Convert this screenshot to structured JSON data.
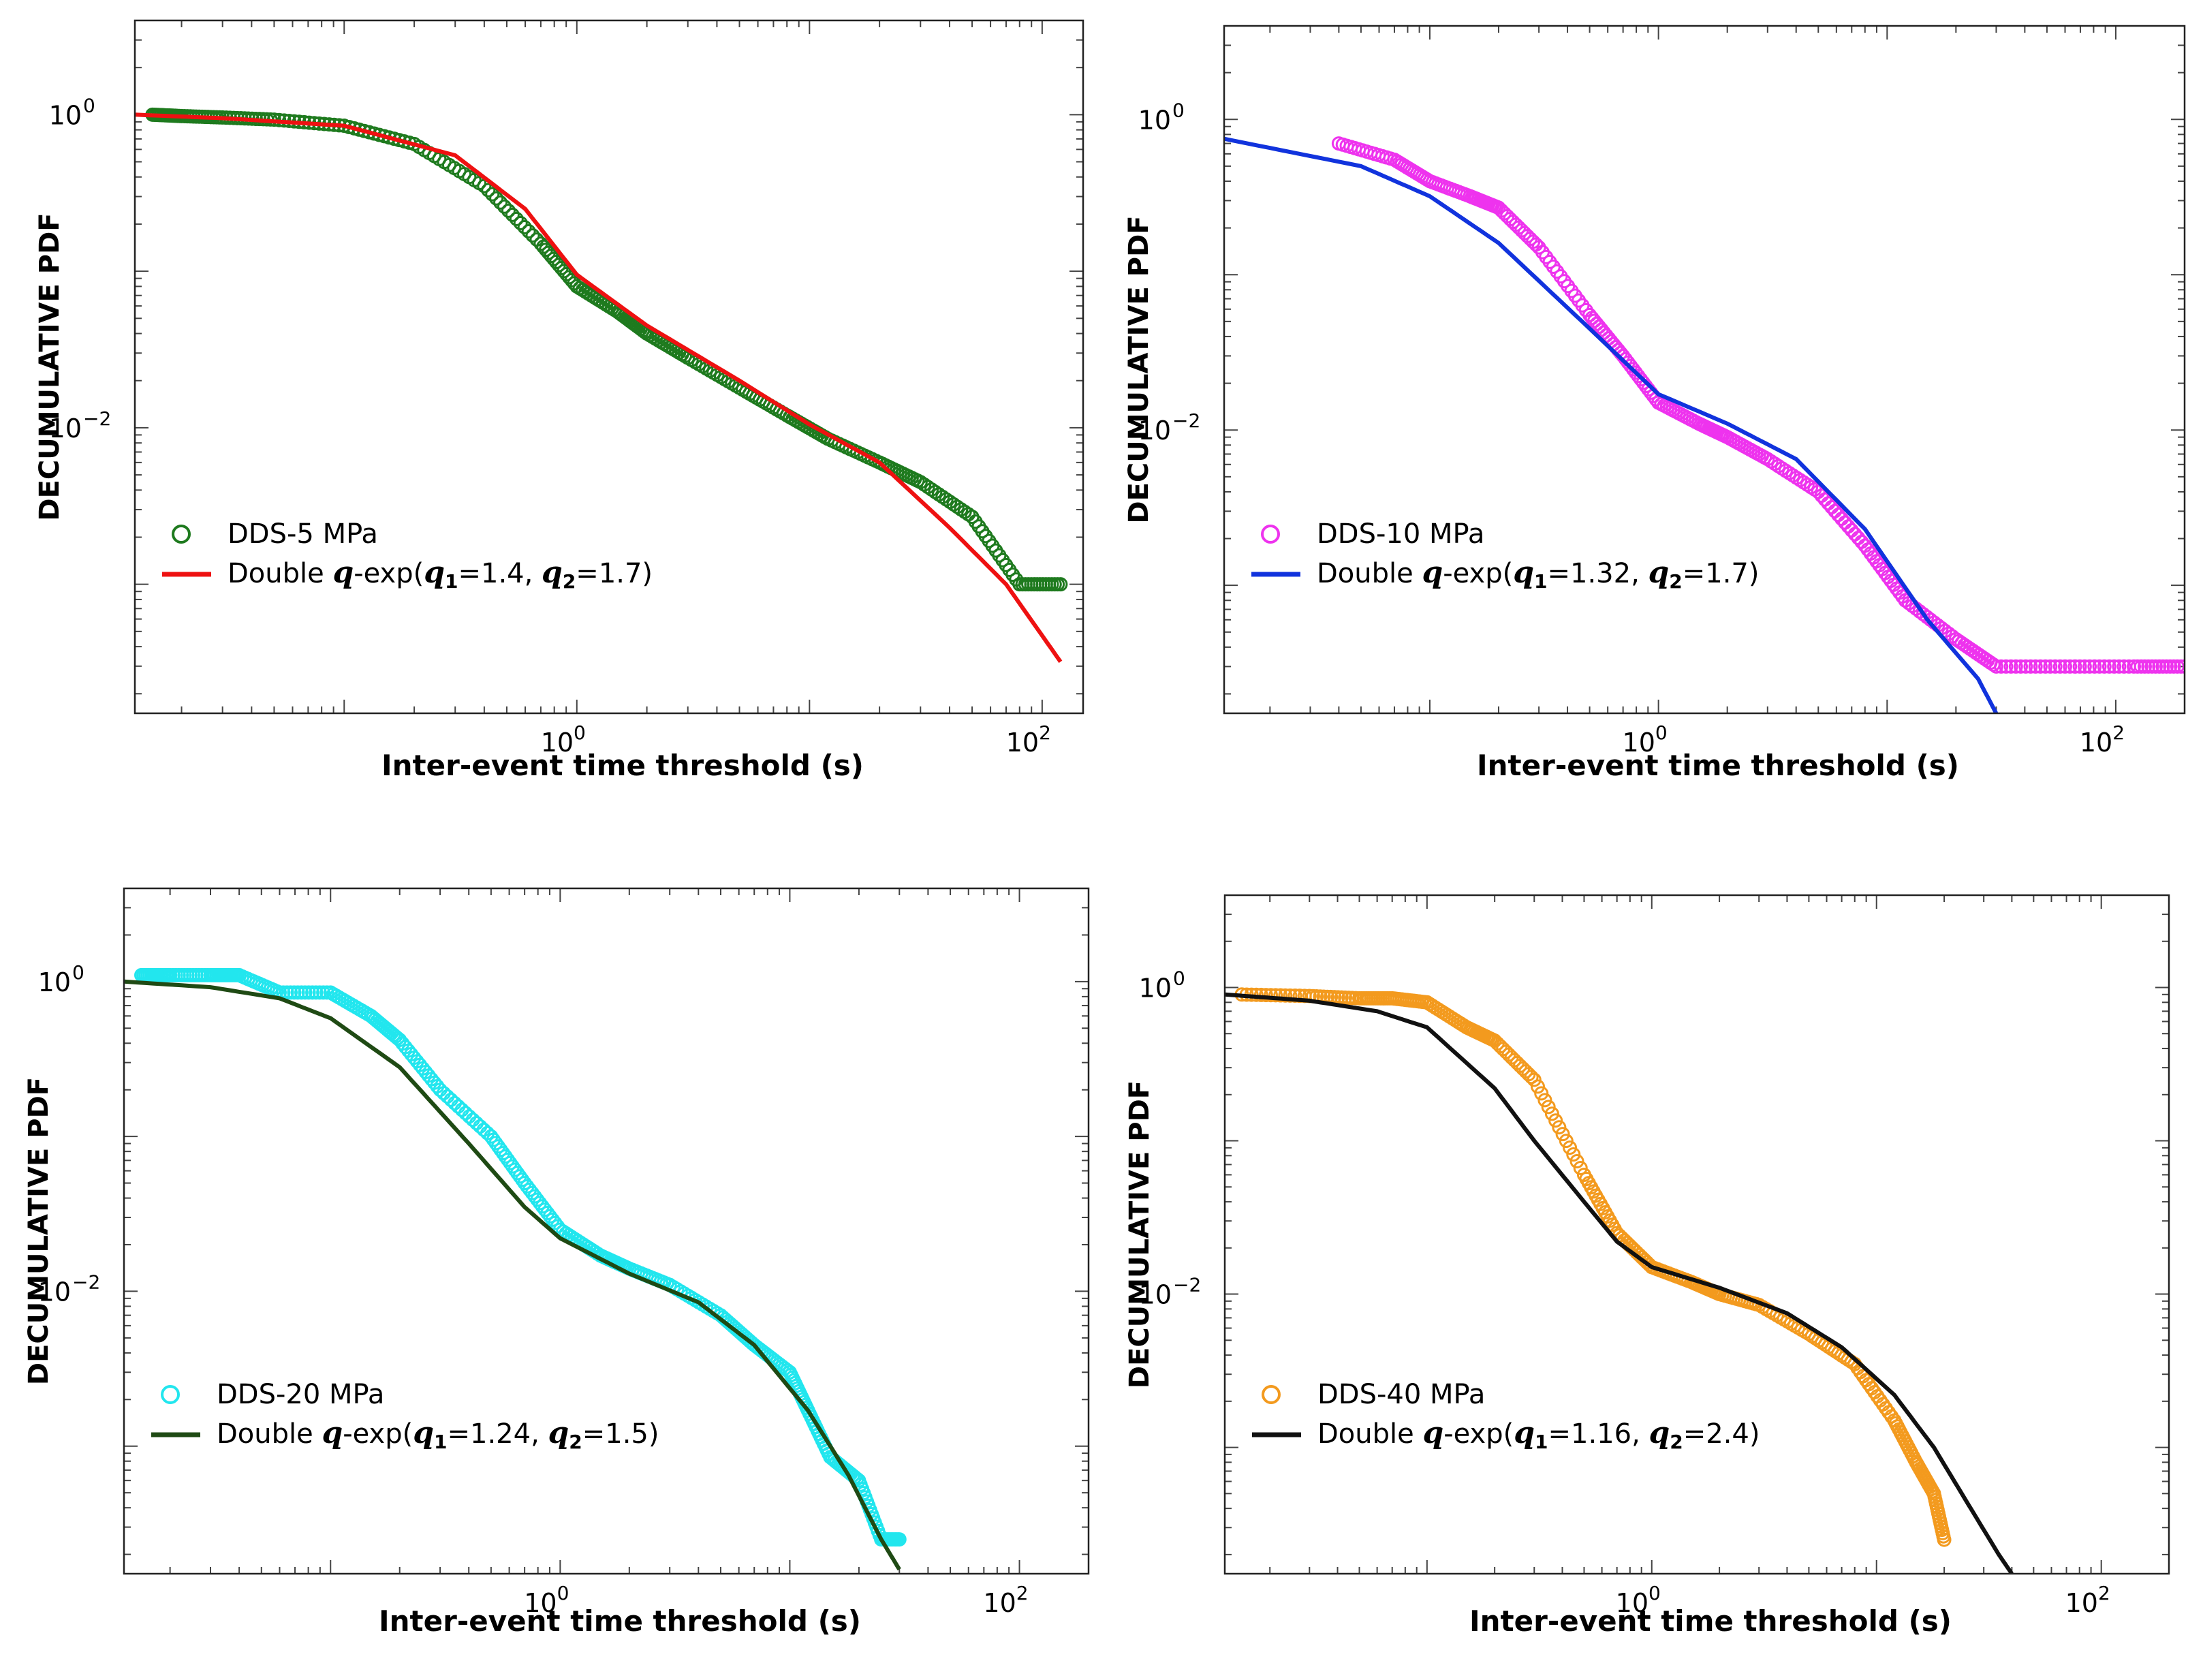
{
  "chart_data": [
    {
      "id": "panel_a",
      "type": "scatter",
      "xscale": "log",
      "yscale": "log",
      "xlim": [
        0.0126,
        150
      ],
      "ylim": [
        0.00015,
        4
      ],
      "xlabel": "Inter-event time threshold (s)",
      "ylabel": "DECUMULATIVE PDF",
      "xticks": [
        {
          "base": "10",
          "exp": "0",
          "value": 1
        },
        {
          "base": "10",
          "exp": "2",
          "value": 100
        }
      ],
      "yticks": [
        {
          "base": "10",
          "exp": "0",
          "value": 1
        },
        {
          "base": "10",
          "exp": "−2",
          "value": 0.01
        }
      ],
      "legend_position": "lower-left",
      "series": [
        {
          "name": "DDS-5 MPa",
          "kind": "scatter",
          "color": "#1e7a1e",
          "x": [
            0.015,
            0.02,
            0.03,
            0.05,
            0.1,
            0.2,
            0.4,
            0.7,
            1.0,
            1.5,
            2.0,
            3.0,
            5.0,
            8.0,
            12,
            20,
            30,
            50,
            80,
            120
          ],
          "y": [
            1.0,
            0.98,
            0.96,
            0.93,
            0.85,
            0.65,
            0.35,
            0.15,
            0.08,
            0.055,
            0.04,
            0.028,
            0.018,
            0.012,
            0.0085,
            0.006,
            0.0045,
            0.0027,
            0.001,
            0.001
          ]
        },
        {
          "name": "Double q-exp",
          "params": "(q1=1.4, q2=1.7)",
          "kind": "line",
          "color": "#ee1111",
          "x": [
            0.0126,
            0.03,
            0.1,
            0.3,
            0.6,
            1.0,
            2.0,
            5.0,
            10,
            20,
            40,
            70,
            120
          ],
          "y": [
            1.0,
            0.95,
            0.85,
            0.55,
            0.25,
            0.095,
            0.045,
            0.02,
            0.0105,
            0.006,
            0.0023,
            0.001,
            0.00032
          ]
        }
      ],
      "legend": [
        {
          "label": "DDS-5 MPa",
          "marker": "circle",
          "color": "#1e7a1e"
        },
        {
          "prefix": "Double ",
          "q": "q",
          "mid": "-exp(",
          "q1": "q",
          "s1": "1",
          "v1": "=1.4, ",
          "q2": "q",
          "s2": "2",
          "v2": "=1.7)",
          "marker": "line",
          "color": "#ee1111"
        }
      ]
    },
    {
      "id": "panel_b",
      "type": "scatter",
      "xscale": "log",
      "yscale": "log",
      "xlim": [
        0.0126,
        200
      ],
      "ylim": [
        0.00015,
        4
      ],
      "xlabel": "Inter-event time threshold (s)",
      "ylabel": "DECUMULATIVE PDF",
      "xticks": [
        {
          "base": "10",
          "exp": "0",
          "value": 1
        },
        {
          "base": "10",
          "exp": "2",
          "value": 100
        }
      ],
      "yticks": [
        {
          "base": "10",
          "exp": "0",
          "value": 1
        },
        {
          "base": "10",
          "exp": "−2",
          "value": 0.01
        }
      ],
      "legend_position": "lower-left",
      "series": [
        {
          "name": "DDS-10 MPa",
          "kind": "scatter",
          "color": "#ee33ee",
          "x": [
            0.04,
            0.07,
            0.1,
            0.15,
            0.2,
            0.3,
            0.5,
            0.7,
            1.0,
            1.5,
            2.0,
            3.0,
            5.0,
            8.0,
            12,
            20,
            30,
            60,
            120,
            200
          ],
          "y": [
            0.7,
            0.55,
            0.4,
            0.32,
            0.27,
            0.15,
            0.055,
            0.03,
            0.015,
            0.011,
            0.009,
            0.0065,
            0.004,
            0.0018,
            0.0008,
            0.00045,
            0.0003,
            0.0003,
            0.0003,
            0.0003
          ]
        },
        {
          "name": "Double q-exp",
          "params": "(q1=1.32, q2=1.7)",
          "kind": "line",
          "color": "#1133dd",
          "x": [
            0.0126,
            0.05,
            0.1,
            0.2,
            0.5,
            1.0,
            2.0,
            4.0,
            8.0,
            15,
            25,
            30
          ],
          "y": [
            0.75,
            0.5,
            0.32,
            0.16,
            0.045,
            0.017,
            0.011,
            0.0065,
            0.0023,
            0.0006,
            0.00025,
            0.00015
          ]
        }
      ],
      "legend": [
        {
          "label": "DDS-10 MPa",
          "marker": "circle",
          "color": "#ee33ee"
        },
        {
          "prefix": "Double ",
          "q": "q",
          "mid": "-exp(",
          "q1": "q",
          "s1": "1",
          "v1": "=1.32, ",
          "q2": "q",
          "s2": "2",
          "v2": "=1.7)",
          "marker": "line",
          "color": "#1133dd"
        }
      ]
    },
    {
      "id": "panel_c",
      "type": "scatter",
      "xscale": "log",
      "yscale": "log",
      "xlim": [
        0.0126,
        200
      ],
      "ylim": [
        0.00015,
        4
      ],
      "xlabel": "Inter-event time threshold (s)",
      "ylabel": "DECUMULATIVE PDF",
      "xticks": [
        {
          "base": "10",
          "exp": "0",
          "value": 1
        },
        {
          "base": "10",
          "exp": "2",
          "value": 100
        }
      ],
      "yticks": [
        {
          "base": "10",
          "exp": "0",
          "value": 1
        },
        {
          "base": "10",
          "exp": "−2",
          "value": 0.01
        }
      ],
      "legend_position": "lower-left",
      "series": [
        {
          "name": "DDS-20 MPa",
          "kind": "scatter",
          "color": "#22e6ee",
          "x": [
            0.015,
            0.02,
            0.03,
            0.04,
            0.06,
            0.1,
            0.15,
            0.2,
            0.3,
            0.5,
            0.7,
            1.0,
            1.5,
            2.0,
            3.0,
            5.0,
            7.0,
            10,
            12,
            15,
            20,
            25,
            30
          ],
          "y": [
            1.1,
            1.1,
            1.1,
            1.1,
            0.85,
            0.85,
            0.6,
            0.42,
            0.2,
            0.1,
            0.05,
            0.025,
            0.017,
            0.014,
            0.011,
            0.007,
            0.0045,
            0.003,
            0.0017,
            0.00085,
            0.0006,
            0.00025,
            0.00025
          ]
        },
        {
          "name": "Double q-exp",
          "params": "(q1=1.24, q2=1.5)",
          "kind": "line",
          "color": "#1f4a14",
          "x": [
            0.0126,
            0.03,
            0.06,
            0.1,
            0.2,
            0.4,
            0.7,
            1.0,
            2.0,
            4.0,
            7.0,
            12,
            18,
            25,
            30
          ],
          "y": [
            1.0,
            0.92,
            0.78,
            0.58,
            0.28,
            0.09,
            0.035,
            0.022,
            0.013,
            0.0085,
            0.0045,
            0.0017,
            0.00065,
            0.00025,
            0.00016
          ]
        }
      ],
      "legend": [
        {
          "label": "DDS-20 MPa",
          "marker": "circle",
          "color": "#22e6ee"
        },
        {
          "prefix": "Double ",
          "q": "q",
          "mid": "-exp(",
          "q1": "q",
          "s1": "1",
          "v1": "=1.24, ",
          "q2": "q",
          "s2": "2",
          "v2": "=1.5)",
          "marker": "line",
          "color": "#1f4a14"
        }
      ]
    },
    {
      "id": "panel_d",
      "type": "scatter",
      "xscale": "log",
      "yscale": "log",
      "xlim": [
        0.0126,
        200
      ],
      "ylim": [
        0.00015,
        4
      ],
      "xlabel": "Inter-event time threshold (s)",
      "ylabel": "DECUMULATIVE PDF",
      "xticks": [
        {
          "base": "10",
          "exp": "0",
          "value": 1
        },
        {
          "base": "10",
          "exp": "2",
          "value": 100
        }
      ],
      "yticks": [
        {
          "base": "10",
          "exp": "0",
          "value": 1
        },
        {
          "base": "10",
          "exp": "−2",
          "value": 0.01
        }
      ],
      "legend_position": "lower-left",
      "series": [
        {
          "name": "DDS-40 MPa",
          "kind": "scatter",
          "color": "#f39a1e",
          "x": [
            0.015,
            0.03,
            0.05,
            0.07,
            0.1,
            0.15,
            0.2,
            0.3,
            0.5,
            0.7,
            1.0,
            1.5,
            2.0,
            3.0,
            5.0,
            8.0,
            12,
            15,
            18,
            20
          ],
          "y": [
            0.9,
            0.88,
            0.85,
            0.85,
            0.8,
            0.55,
            0.45,
            0.25,
            0.06,
            0.025,
            0.015,
            0.012,
            0.01,
            0.0085,
            0.0055,
            0.0035,
            0.0015,
            0.0008,
            0.0005,
            0.00025
          ]
        },
        {
          "name": "Double q-exp",
          "params": "(q1=1.16, q2=2.4)",
          "kind": "line",
          "color": "#111111",
          "x": [
            0.0126,
            0.03,
            0.06,
            0.1,
            0.2,
            0.3,
            0.5,
            0.7,
            1.0,
            2.0,
            4.0,
            7.0,
            12,
            18,
            25,
            35,
            40
          ],
          "y": [
            0.9,
            0.82,
            0.7,
            0.55,
            0.22,
            0.1,
            0.04,
            0.022,
            0.015,
            0.011,
            0.0075,
            0.0045,
            0.0022,
            0.001,
            0.00045,
            0.0002,
            0.00015
          ]
        }
      ],
      "legend": [
        {
          "label": "DDS-40 MPa",
          "marker": "circle",
          "color": "#f39a1e"
        },
        {
          "prefix": "Double ",
          "q": "q",
          "mid": "-exp(",
          "q1": "q",
          "s1": "1",
          "v1": "=1.16, ",
          "q2": "q",
          "s2": "2",
          "v2": "=2.4)",
          "marker": "line",
          "color": "#111111"
        }
      ]
    }
  ]
}
